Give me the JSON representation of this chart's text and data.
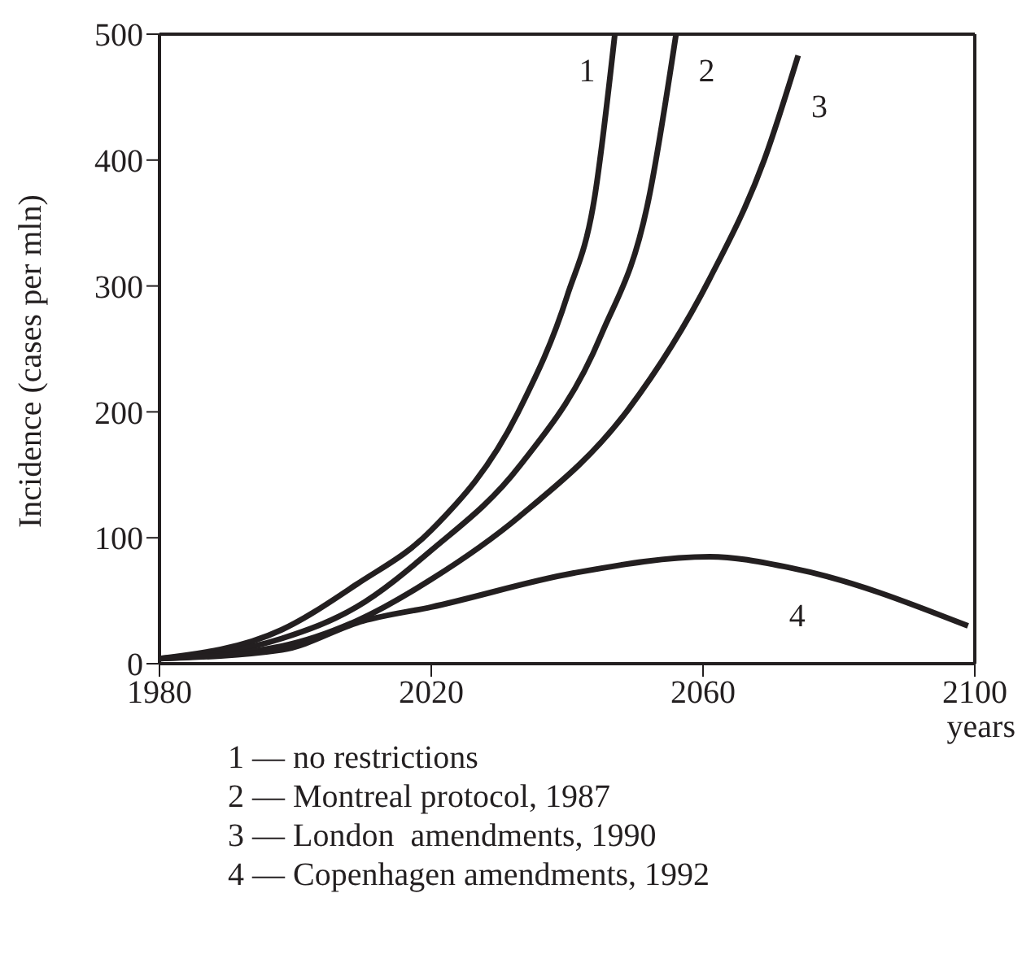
{
  "chart_data": {
    "type": "line",
    "xlabel": "years",
    "ylabel": "Incidence (cases per mln)",
    "xlim": [
      1980,
      2100
    ],
    "xticks": [
      1980,
      2020,
      2060,
      2100
    ],
    "ylim": [
      0,
      500
    ],
    "yticks": [
      0,
      100,
      200,
      300,
      400,
      500
    ],
    "legend": false,
    "marker": "none",
    "line_style": "solid",
    "series": [
      {
        "name": "1",
        "color": "#231f20",
        "x": [
          1980,
          1998,
          2009,
          2020,
          2033,
          2040,
          2044,
          2047
        ],
        "values": [
          4,
          27,
          63,
          106,
          202,
          292,
          369,
          499
        ]
      },
      {
        "name": "2",
        "color": "#231f20",
        "x": [
          1980,
          1998,
          2009,
          2020,
          2033,
          2045,
          2052,
          2056
        ],
        "values": [
          4,
          20,
          45,
          90,
          157,
          261,
          369,
          499
        ]
      },
      {
        "name": "3",
        "color": "#231f20",
        "x": [
          1980,
          1998,
          2009,
          2020,
          2033,
          2049,
          2061,
          2069,
          2074
        ],
        "values": [
          4,
          14,
          34,
          67,
          117,
          202,
          306,
          400,
          483
        ]
      },
      {
        "name": "4",
        "color": "#231f20",
        "x": [
          1980,
          1998,
          2010,
          2020,
          2041,
          2061,
          2073,
          2099
        ],
        "values": [
          4,
          11,
          34,
          45,
          72,
          85,
          76,
          30
        ]
      }
    ],
    "annotations": [
      "1 — no restrictions",
      "2 — Montreal protocol, 1987",
      "3 — London  amendments, 1990",
      "4 — Copenhagen amendments, 1992"
    ]
  }
}
